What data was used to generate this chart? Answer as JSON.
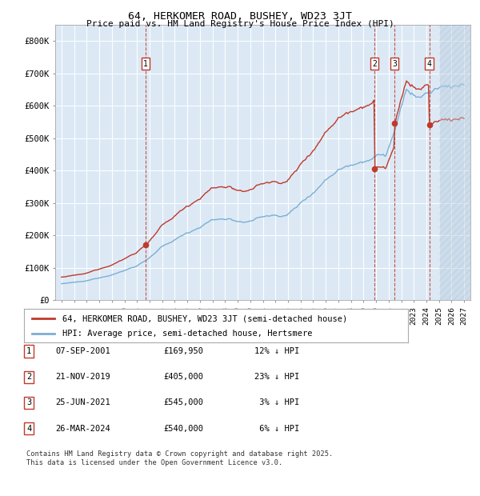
{
  "title1": "64, HERKOMER ROAD, BUSHEY, WD23 3JT",
  "title2": "Price paid vs. HM Land Registry's House Price Index (HPI)",
  "ylim": [
    0,
    850000
  ],
  "yticks": [
    0,
    100000,
    200000,
    300000,
    400000,
    500000,
    600000,
    700000,
    800000
  ],
  "ytick_labels": [
    "£0",
    "£100K",
    "£200K",
    "£300K",
    "£400K",
    "£500K",
    "£600K",
    "£700K",
    "£800K"
  ],
  "xlim_start": 1994.5,
  "xlim_end": 2027.5,
  "hpi_color": "#7bafd4",
  "price_color": "#c0392b",
  "dashed_color": "#c0392b",
  "bg_color": "#dce9f5",
  "transactions": [
    {
      "num": 1,
      "date": "07-SEP-2001",
      "price": 169950,
      "pct": "12% ↓ HPI",
      "year": 2001.69
    },
    {
      "num": 2,
      "date": "21-NOV-2019",
      "price": 405000,
      "pct": "23% ↓ HPI",
      "year": 2019.89
    },
    {
      "num": 3,
      "date": "25-JUN-2021",
      "price": 545000,
      "pct": "3% ↓ HPI",
      "year": 2021.48
    },
    {
      "num": 4,
      "date": "26-MAR-2024",
      "price": 540000,
      "pct": "6% ↓ HPI",
      "year": 2024.23
    }
  ],
  "legend_line1": "64, HERKOMER ROAD, BUSHEY, WD23 3JT (semi-detached house)",
  "legend_line2": "HPI: Average price, semi-detached house, Hertsmere",
  "footer1": "Contains HM Land Registry data © Crown copyright and database right 2025.",
  "footer2": "This data is licensed under the Open Government Licence v3.0.",
  "cutoff_year": 2025.0,
  "hatch_start": 2025.0
}
